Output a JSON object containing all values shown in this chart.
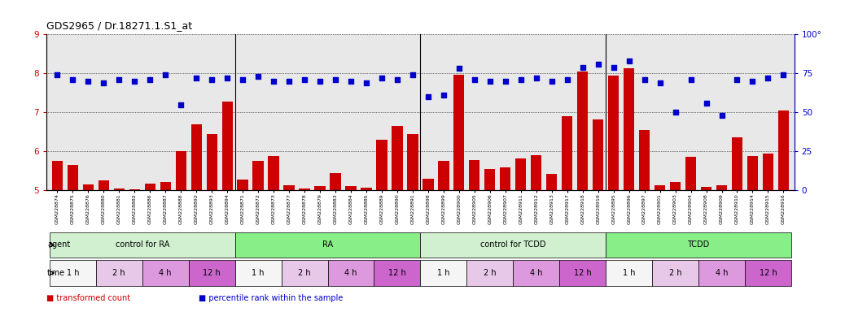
{
  "title": "GDS2965 / Dr.18271.1.S1_at",
  "samples": [
    "GSM228874",
    "GSM228875",
    "GSM228876",
    "GSM228880",
    "GSM228881",
    "GSM228882",
    "GSM228886",
    "GSM228887",
    "GSM228888",
    "GSM228892",
    "GSM228893",
    "GSM228894",
    "GSM228871",
    "GSM228872",
    "GSM228873",
    "GSM228877",
    "GSM228878",
    "GSM228879",
    "GSM228883",
    "GSM228884",
    "GSM228885",
    "GSM228889",
    "GSM228890",
    "GSM228891",
    "GSM228898",
    "GSM228899",
    "GSM228900",
    "GSM228905",
    "GSM228906",
    "GSM228907",
    "GSM228911",
    "GSM228912",
    "GSM228913",
    "GSM228917",
    "GSM228918",
    "GSM228919",
    "GSM228895",
    "GSM228896",
    "GSM228897",
    "GSM228901",
    "GSM228903",
    "GSM228904",
    "GSM228908",
    "GSM228909",
    "GSM228910",
    "GSM228914",
    "GSM228915",
    "GSM228916"
  ],
  "bar_values": [
    5.75,
    5.65,
    5.15,
    5.25,
    5.05,
    5.02,
    5.18,
    5.22,
    6.0,
    6.7,
    6.45,
    7.28,
    5.28,
    5.75,
    5.88,
    5.12,
    5.05,
    5.1,
    5.45,
    5.1,
    5.07,
    6.3,
    6.65,
    6.45,
    5.3,
    5.75,
    7.97,
    5.78,
    5.55,
    5.58,
    5.82,
    5.9,
    5.42,
    6.9,
    8.05,
    6.82,
    7.95,
    8.12,
    6.55,
    5.12,
    5.22,
    5.85,
    5.08,
    5.12,
    6.35,
    5.88,
    5.95,
    7.05
  ],
  "percentile_values": [
    74,
    71,
    70,
    69,
    71,
    70,
    71,
    74,
    55,
    72,
    71,
    72,
    71,
    73,
    70,
    70,
    71,
    70,
    71,
    70,
    69,
    72,
    71,
    74,
    60,
    61,
    78,
    71,
    70,
    70,
    71,
    72,
    70,
    71,
    79,
    81,
    79,
    83,
    71,
    69,
    50,
    71,
    56,
    48,
    71,
    70,
    72,
    74
  ],
  "bar_color": "#cc0000",
  "dot_color": "#0000cc",
  "ylim_left": [
    5,
    9
  ],
  "ylim_right": [
    0,
    100
  ],
  "yticks_left": [
    5,
    6,
    7,
    8,
    9
  ],
  "yticks_right": [
    0,
    25,
    50,
    75,
    100
  ],
  "groups": [
    {
      "label": "control for RA",
      "start": 0,
      "end": 12,
      "color": "#d0f0d0"
    },
    {
      "label": "RA",
      "start": 12,
      "end": 24,
      "color": "#88ee88"
    },
    {
      "label": "control for TCDD",
      "start": 24,
      "end": 36,
      "color": "#d0f0d0"
    },
    {
      "label": "TCDD",
      "start": 36,
      "end": 48,
      "color": "#88ee88"
    }
  ],
  "time_groups": [
    {
      "label": "1 h",
      "start": 0,
      "end": 3,
      "color": "#f5f5f5"
    },
    {
      "label": "2 h",
      "start": 3,
      "end": 6,
      "color": "#e8c8e8"
    },
    {
      "label": "4 h",
      "start": 6,
      "end": 9,
      "color": "#dd99dd"
    },
    {
      "label": "12 h",
      "start": 9,
      "end": 12,
      "color": "#cc66cc"
    },
    {
      "label": "1 h",
      "start": 12,
      "end": 15,
      "color": "#f5f5f5"
    },
    {
      "label": "2 h",
      "start": 15,
      "end": 18,
      "color": "#e8c8e8"
    },
    {
      "label": "4 h",
      "start": 18,
      "end": 21,
      "color": "#dd99dd"
    },
    {
      "label": "12 h",
      "start": 21,
      "end": 24,
      "color": "#cc66cc"
    },
    {
      "label": "1 h",
      "start": 24,
      "end": 27,
      "color": "#f5f5f5"
    },
    {
      "label": "2 h",
      "start": 27,
      "end": 30,
      "color": "#e8c8e8"
    },
    {
      "label": "4 h",
      "start": 30,
      "end": 33,
      "color": "#dd99dd"
    },
    {
      "label": "12 h",
      "start": 33,
      "end": 36,
      "color": "#cc66cc"
    },
    {
      "label": "1 h",
      "start": 36,
      "end": 39,
      "color": "#f5f5f5"
    },
    {
      "label": "2 h",
      "start": 39,
      "end": 42,
      "color": "#e8c8e8"
    },
    {
      "label": "4 h",
      "start": 42,
      "end": 45,
      "color": "#dd99dd"
    },
    {
      "label": "12 h",
      "start": 45,
      "end": 48,
      "color": "#cc66cc"
    }
  ],
  "legend_bar_label": "transformed count",
  "legend_dot_label": "percentile rank within the sample",
  "agent_label": "agent",
  "time_label": "time",
  "chart_bg": "#e8e8e8",
  "fig_bg": "white"
}
